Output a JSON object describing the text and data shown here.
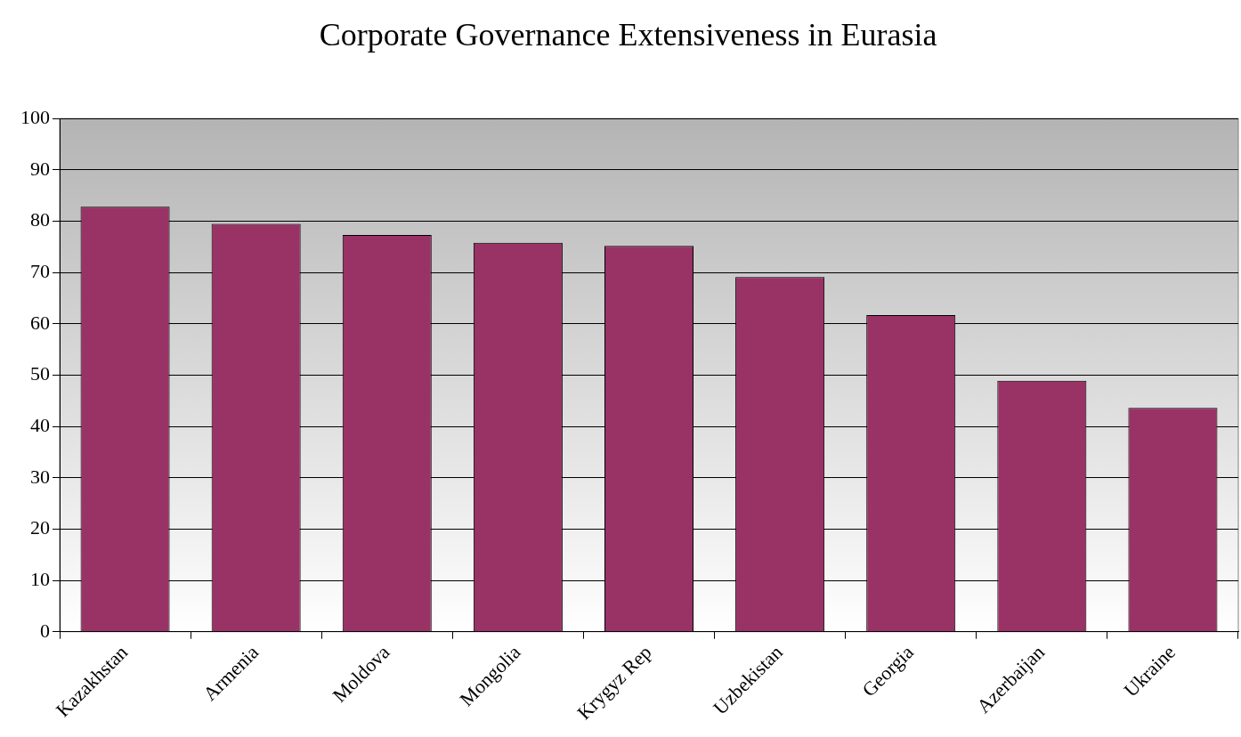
{
  "chart_data": {
    "type": "bar",
    "title": "Corporate Governance Extensiveness in Eurasia",
    "categories": [
      "Kazakhstan",
      "Armenia",
      "Moldova",
      "Mongolia",
      "Krygyz Rep",
      "Uzbekistan",
      "Georgia",
      "Azerbaijan",
      "Ukraine"
    ],
    "values": [
      82.8,
      79.5,
      77.3,
      75.8,
      75.2,
      69.1,
      61.7,
      48.9,
      43.6
    ],
    "color": "#993366",
    "ylim": [
      0,
      100
    ],
    "yticks": [
      0,
      10,
      20,
      30,
      40,
      50,
      60,
      70,
      80,
      90,
      100
    ],
    "grid": "y",
    "legend": false
  }
}
